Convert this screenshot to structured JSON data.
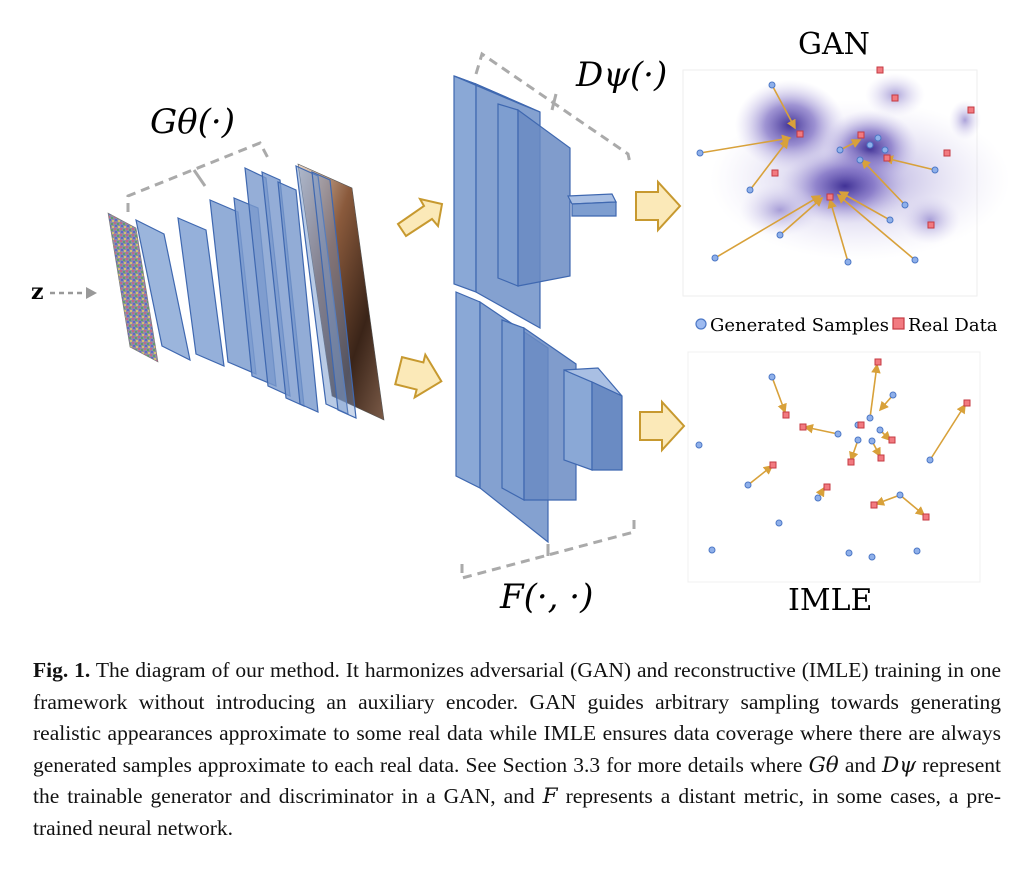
{
  "figure": {
    "input_label": "z",
    "generator_label": "Gθ(·)",
    "discriminator_label": "Dψ(·)",
    "metric_label": "F(·, ·)",
    "gan_title": "GAN",
    "imle_title": "IMLE",
    "legend": {
      "generated": "Generated Samples",
      "real": "Real Data"
    },
    "colors": {
      "layer_fill": "#7f9fd0",
      "layer_stroke": "#3f68b0",
      "arrow_fill": "#fbe9b8",
      "arrow_stroke": "#c7992f",
      "generated_marker": "#7ba2e0",
      "real_marker": "#e8585f",
      "link": "#d8a13a",
      "density": "#4b3d9e"
    },
    "icons": [
      "noise-image-icon",
      "face-image-icon",
      "block-arrow-icon"
    ]
  },
  "caption": {
    "label": "Fig. 1.",
    "text_1": " The diagram of our method. It harmonizes adversarial (GAN) and reconstructive (IMLE) training in one framework without introducing an auxiliary encoder. GAN guides arbitrary sampling towards generating realistic appearances approximate to some real data while IMLE ensures data coverage where there are always generated samples approximate to each real data. See Section 3.3 for more details where ",
    "g_symbol": "Gθ",
    "text_2": " and ",
    "d_symbol": "Dψ",
    "text_3": " represent the trainable generator and discriminator in a GAN, and ",
    "f_symbol": "F",
    "text_4": " represents a distant metric, in some cases, a pre-trained neural network."
  }
}
